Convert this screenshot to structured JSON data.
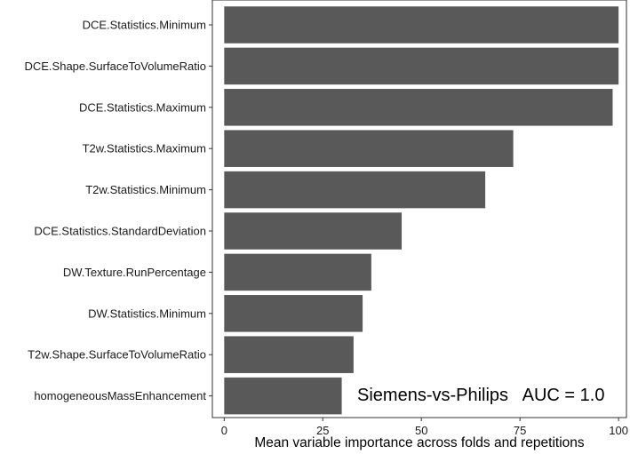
{
  "chart_data": {
    "type": "bar",
    "orientation": "horizontal",
    "title": "",
    "xlabel": "Mean variable importance across folds and repetitions",
    "ylabel": "",
    "xlim": [
      -3,
      102
    ],
    "xticks": [
      0,
      25,
      50,
      75,
      100
    ],
    "categories": [
      "DCE.Statistics.Minimum",
      "DCE.Shape.SurfaceToVolumeRatio",
      "DCE.Statistics.Maximum",
      "T2w.Statistics.Maximum",
      "T2w.Statistics.Minimum",
      "DCE.Statistics.StandardDeviation",
      "DW.Texture.RunPercentage",
      "DW.Statistics.Minimum",
      "T2w.Shape.SurfaceToVolumeRatio",
      "homogeneousMassEnhancement"
    ],
    "values": [
      100,
      100,
      98.5,
      73.3,
      66.2,
      45.0,
      37.3,
      35.1,
      32.8,
      29.8
    ],
    "bar_color": "#595959",
    "annotation": "Siemens-vs-Philips   AUC = 1.0",
    "grid": false,
    "legend": "none"
  }
}
